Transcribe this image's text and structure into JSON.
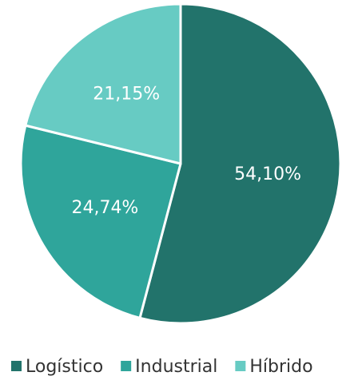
{
  "chart_data": {
    "type": "pie",
    "categories": [
      "Logístico",
      "Industrial",
      "Híbrido"
    ],
    "values": [
      54.1,
      24.74,
      21.15
    ],
    "value_labels": [
      "54,10%",
      "24,74%",
      "21,15%"
    ],
    "colors": [
      "#22736b",
      "#2fa59b",
      "#67cbc3"
    ],
    "legend": "bottom"
  }
}
